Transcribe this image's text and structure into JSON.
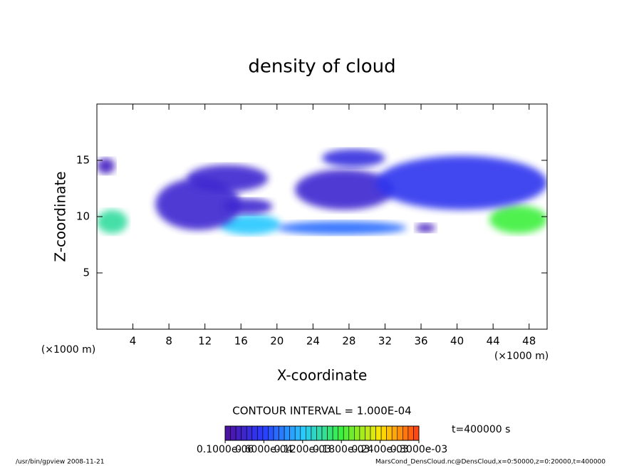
{
  "chart_data": {
    "type": "contour",
    "title": "density of cloud",
    "x_label": "X-coordinate",
    "y_label": "Z-coordinate",
    "x_unit_left": "(×1000 m)",
    "x_unit_right": "(×1000 m)",
    "xlim": [
      0,
      50
    ],
    "ylim": [
      0,
      20
    ],
    "xticks": [
      4,
      8,
      12,
      16,
      20,
      24,
      28,
      32,
      36,
      40,
      44,
      48
    ],
    "yticks": [
      5,
      10,
      15
    ],
    "contour_interval": "CONTOUR INTERVAL = 1.000E-04",
    "time_label": "t=400000 s",
    "clim": [
      0,
      0.0003
    ],
    "colorbar_ticks": [
      {
        "value": 1e-07,
        "label": "0.1000e-06"
      },
      {
        "value": 6e-05,
        "label": "0.6000e-04"
      },
      {
        "value": 0.00012,
        "label": "0.1200e-03"
      },
      {
        "value": 0.00018,
        "label": "0.1800e-03"
      },
      {
        "value": 0.00024,
        "label": "0.2400e-03"
      },
      {
        "value": 0.0003,
        "label": "0.3000e-03"
      }
    ],
    "blobs": [
      {
        "x": [
          0,
          3.4
        ],
        "z": [
          8.5,
          10.6
        ],
        "value": 0.00015
      },
      {
        "x": [
          43.6,
          50
        ],
        "z": [
          8.5,
          11
        ],
        "value": 0.00018
      },
      {
        "x": [
          13.6,
          20.4
        ],
        "z": [
          8.4,
          10.2
        ],
        "value": 0.00012
      },
      {
        "x": [
          20,
          34.4
        ],
        "z": [
          8.4,
          9.6
        ],
        "value": 8e-05
      },
      {
        "x": [
          6.5,
          16
        ],
        "z": [
          8.8,
          13.4
        ],
        "value": 3e-05
      },
      {
        "x": [
          10,
          19
        ],
        "z": [
          12.2,
          14.6
        ],
        "value": 3e-05
      },
      {
        "x": [
          14,
          19.5
        ],
        "z": [
          10.2,
          11.6
        ],
        "value": 3e-05
      },
      {
        "x": [
          22,
          33
        ],
        "z": [
          10.6,
          14.2
        ],
        "value": 3e-05
      },
      {
        "x": [
          25,
          32
        ],
        "z": [
          14.4,
          16
        ],
        "value": 4e-05
      },
      {
        "x": [
          31,
          50
        ],
        "z": [
          10.6,
          15.4
        ],
        "value": 5e-05
      },
      {
        "x": [
          0,
          2
        ],
        "z": [
          13.8,
          15.2
        ],
        "value": 2e-05
      },
      {
        "x": [
          35.4,
          37.6
        ],
        "z": [
          8.6,
          9.4
        ],
        "value": 2e-05
      }
    ],
    "footer_left": "/usr/bin/gpview   2008-11-21",
    "footer_right": "MarsCond_DensCloud.nc@DensCloud,x=0:50000,z=0:20000,t=400000"
  }
}
